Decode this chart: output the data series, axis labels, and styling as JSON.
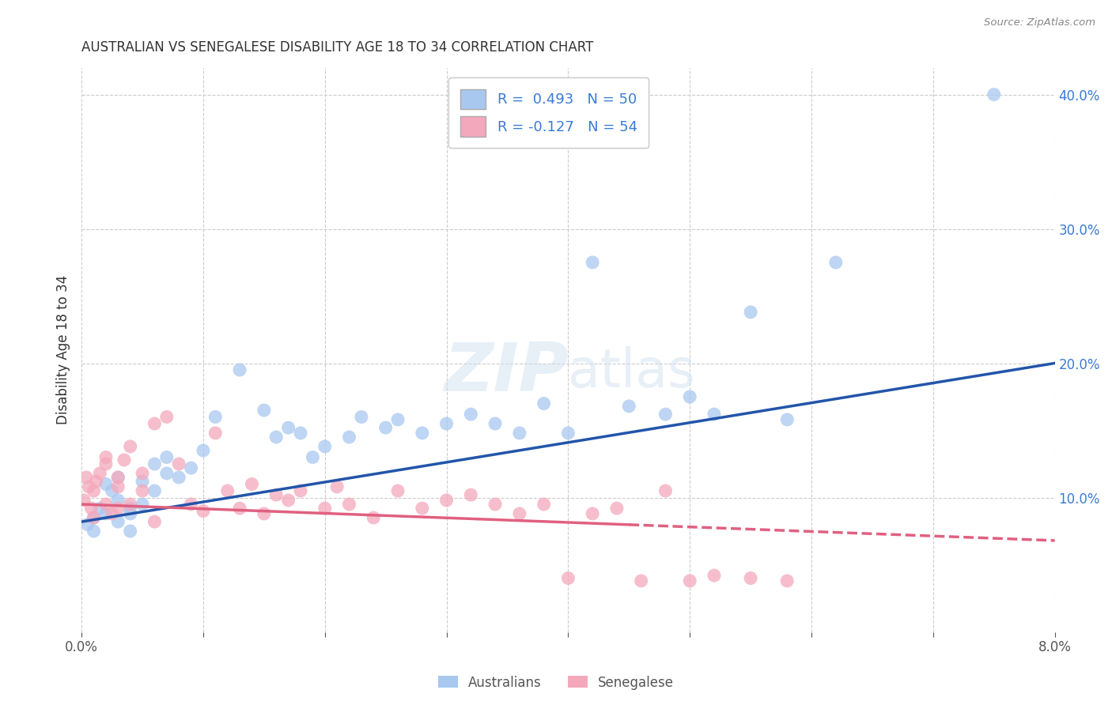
{
  "title": "AUSTRALIAN VS SENEGALESE DISABILITY AGE 18 TO 34 CORRELATION CHART",
  "source": "Source: ZipAtlas.com",
  "ylabel": "Disability Age 18 to 34",
  "xlim": [
    0.0,
    0.08
  ],
  "ylim": [
    0.0,
    0.42
  ],
  "x_ticks": [
    0.0,
    0.01,
    0.02,
    0.03,
    0.04,
    0.05,
    0.06,
    0.07,
    0.08
  ],
  "x_tick_labels": [
    "0.0%",
    "",
    "",
    "",
    "",
    "",
    "",
    "",
    "8.0%"
  ],
  "y_ticks_right": [
    0.1,
    0.2,
    0.3,
    0.4
  ],
  "y_tick_labels_right": [
    "10.0%",
    "20.0%",
    "30.0%",
    "40.0%"
  ],
  "blue_color": "#A8C8F0",
  "pink_color": "#F4A8BC",
  "blue_line_color": "#2255AA",
  "pink_line_color": "#E06080",
  "legend_r_blue": "R =  0.493",
  "legend_n_blue": "N = 50",
  "legend_r_pink": "R = -0.127",
  "legend_n_pink": "N = 54",
  "legend_label_blue": "Australians",
  "legend_label_pink": "Senegalese",
  "watermark": "ZIPatlas",
  "background_color": "#FFFFFF",
  "grid_color": "#CCCCCC",
  "aus_x": [
    0.0005,
    0.001,
    0.001,
    0.0015,
    0.002,
    0.002,
    0.0025,
    0.003,
    0.003,
    0.003,
    0.004,
    0.004,
    0.004,
    0.005,
    0.005,
    0.006,
    0.006,
    0.007,
    0.007,
    0.008,
    0.009,
    0.01,
    0.011,
    0.013,
    0.015,
    0.016,
    0.017,
    0.018,
    0.019,
    0.02,
    0.022,
    0.023,
    0.025,
    0.026,
    0.028,
    0.03,
    0.032,
    0.034,
    0.036,
    0.038,
    0.04,
    0.042,
    0.045,
    0.048,
    0.05,
    0.052,
    0.055,
    0.058,
    0.062,
    0.075
  ],
  "aus_y": [
    0.08,
    0.085,
    0.075,
    0.092,
    0.11,
    0.088,
    0.105,
    0.098,
    0.082,
    0.115,
    0.092,
    0.088,
    0.075,
    0.112,
    0.095,
    0.125,
    0.105,
    0.13,
    0.118,
    0.115,
    0.122,
    0.135,
    0.16,
    0.195,
    0.165,
    0.145,
    0.152,
    0.148,
    0.13,
    0.138,
    0.145,
    0.16,
    0.152,
    0.158,
    0.148,
    0.155,
    0.162,
    0.155,
    0.148,
    0.17,
    0.148,
    0.275,
    0.168,
    0.162,
    0.175,
    0.162,
    0.238,
    0.158,
    0.275,
    0.4
  ],
  "sen_x": [
    0.0002,
    0.0004,
    0.0006,
    0.0008,
    0.001,
    0.001,
    0.0012,
    0.0015,
    0.002,
    0.002,
    0.002,
    0.0025,
    0.003,
    0.003,
    0.003,
    0.0035,
    0.004,
    0.004,
    0.005,
    0.005,
    0.006,
    0.006,
    0.007,
    0.008,
    0.009,
    0.01,
    0.011,
    0.012,
    0.013,
    0.014,
    0.015,
    0.016,
    0.017,
    0.018,
    0.02,
    0.021,
    0.022,
    0.024,
    0.026,
    0.028,
    0.03,
    0.032,
    0.034,
    0.036,
    0.038,
    0.04,
    0.042,
    0.044,
    0.046,
    0.048,
    0.05,
    0.052,
    0.055,
    0.058
  ],
  "sen_y": [
    0.098,
    0.115,
    0.108,
    0.092,
    0.105,
    0.085,
    0.112,
    0.118,
    0.095,
    0.125,
    0.13,
    0.088,
    0.115,
    0.108,
    0.092,
    0.128,
    0.095,
    0.138,
    0.118,
    0.105,
    0.155,
    0.082,
    0.16,
    0.125,
    0.095,
    0.09,
    0.148,
    0.105,
    0.092,
    0.11,
    0.088,
    0.102,
    0.098,
    0.105,
    0.092,
    0.108,
    0.095,
    0.085,
    0.105,
    0.092,
    0.098,
    0.102,
    0.095,
    0.088,
    0.095,
    0.04,
    0.088,
    0.092,
    0.038,
    0.105,
    0.038,
    0.042,
    0.04,
    0.038
  ],
  "aus_line_x0": 0.0,
  "aus_line_x1": 0.08,
  "aus_line_y0": 0.082,
  "aus_line_y1": 0.2,
  "sen_line_x0": 0.0,
  "sen_line_x1": 0.08,
  "sen_line_y0": 0.095,
  "sen_line_y1": 0.068
}
